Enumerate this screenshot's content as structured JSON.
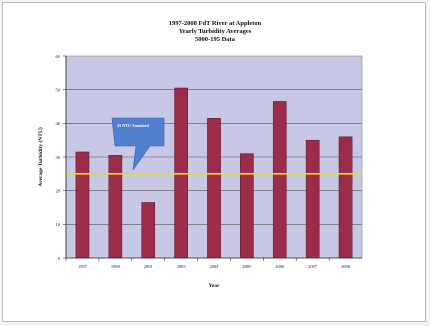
{
  "chart_data": {
    "type": "bar",
    "title": "1997-2008 FdT River at Appleton",
    "subtitle": "Yearly Turbidity Averages",
    "subtitle2": "5000-195 Data",
    "xlabel": "Year",
    "ylabel": "Average Turbidity (NTU)",
    "categories": [
      "1997",
      "1999",
      "2001",
      "2003",
      "2004",
      "2005",
      "2006",
      "2007",
      "2008"
    ],
    "values": [
      31.5,
      30.5,
      16.5,
      50.5,
      41.5,
      31,
      46.5,
      35,
      36
    ],
    "ylim": [
      0,
      60
    ],
    "yticks": [
      0,
      10,
      20,
      30,
      40,
      50,
      60
    ],
    "grid": true,
    "reference_line": {
      "value": 25,
      "label": "25 NTU Standard",
      "color": "#e8e000"
    },
    "colors": {
      "bar": "#9b2d4a",
      "plot_bg": "#c8c8e6",
      "callout": "#4f7fce"
    }
  }
}
